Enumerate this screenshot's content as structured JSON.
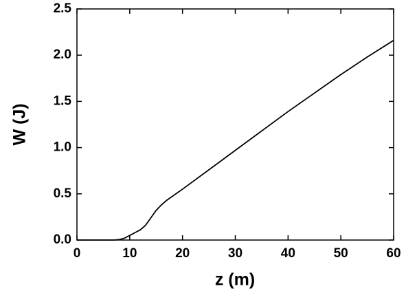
{
  "chart_data": {
    "type": "line",
    "x_label": "z (m)",
    "y_label": "W (J)",
    "x": [
      0,
      5,
      7,
      8,
      9,
      10,
      11,
      12,
      13,
      14,
      15,
      16,
      17,
      18,
      20,
      25,
      30,
      35,
      40,
      45,
      50,
      55,
      60
    ],
    "series": [
      {
        "color": "#000000",
        "values": [
          0,
          0,
          0,
          0.005,
          0.02,
          0.05,
          0.08,
          0.11,
          0.16,
          0.24,
          0.32,
          0.38,
          0.43,
          0.47,
          0.55,
          0.76,
          0.97,
          1.18,
          1.39,
          1.59,
          1.79,
          1.98,
          2.16
        ]
      }
    ],
    "xlim": [
      0,
      60
    ],
    "xticks": [
      0,
      10,
      20,
      30,
      40,
      50,
      60
    ],
    "ylim": [
      0,
      2.5
    ],
    "yticks": [
      {
        "value": 0,
        "label": "0.0"
      },
      0.5,
      {
        "value": 1,
        "label": "1.0"
      },
      1.5,
      {
        "value": 2,
        "label": "2.0"
      },
      2.5
    ]
  }
}
